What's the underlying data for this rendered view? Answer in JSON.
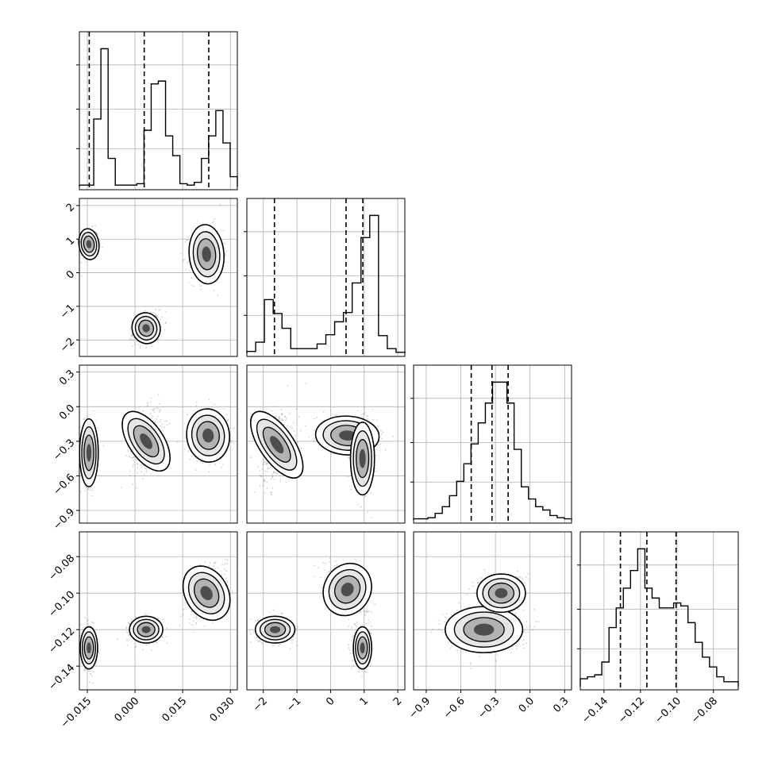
{
  "chart_data": {
    "type": "corner",
    "grid": true,
    "parameters": [
      {
        "ticks": [
          "−0.015",
          "0.000",
          "0.015",
          "0.030"
        ],
        "tick_values": [
          -0.015,
          0.0,
          0.015,
          0.03
        ],
        "range": [
          -0.0175,
          0.0322
        ]
      },
      {
        "ticks": [
          "−2",
          "−1",
          "0",
          "1",
          "2"
        ],
        "tick_values": [
          -2,
          -1,
          0,
          1,
          2
        ],
        "range": [
          -2.49,
          2.21
        ]
      },
      {
        "ticks": [
          "−0.9",
          "−0.6",
          "−0.3",
          "0.0",
          "0.3"
        ],
        "tick_values": [
          -0.9,
          -0.6,
          -0.3,
          0.0,
          0.3
        ],
        "range": [
          -1.01,
          0.36
        ]
      },
      {
        "ticks": [
          "−0.14",
          "−0.12",
          "−0.10",
          "−0.08"
        ],
        "tick_values": [
          -0.14,
          -0.12,
          -0.1,
          -0.08
        ],
        "range": [
          -0.153,
          -0.0664
        ]
      }
    ],
    "histograms": [
      {
        "counts": [
          1,
          1,
          48,
          98,
          20,
          1,
          1,
          1,
          2,
          40,
          73,
          75,
          36,
          22,
          2,
          1,
          3,
          20,
          36,
          54,
          31,
          7
        ],
        "quantile_lines": [
          -0.0144,
          0.0029,
          0.0232
        ]
      },
      {
        "counts": [
          2,
          12,
          58,
          43,
          27,
          5,
          5,
          5,
          10,
          20,
          34,
          44,
          76,
          125,
          149,
          19,
          5,
          1
        ],
        "quantile_lines": [
          -1.67,
          0.46,
          0.96
        ]
      },
      {
        "counts": [
          1,
          1,
          2,
          6,
          12,
          22,
          35,
          51,
          69,
          88,
          106,
          125,
          125,
          106,
          64,
          30,
          19,
          12,
          9,
          4,
          2,
          1
        ],
        "quantile_lines": [
          -0.51,
          -0.33,
          -0.19
        ]
      },
      {
        "counts": [
          8,
          10,
          12,
          25,
          60,
          80,
          100,
          118,
          140,
          100,
          90,
          80,
          80,
          85,
          82,
          65,
          45,
          30,
          20,
          10,
          5,
          5
        ],
        "quantile_lines": [
          -0.131,
          -0.1165,
          -0.1005
        ]
      }
    ],
    "scatter_panels": [
      {
        "x": 0,
        "y": 1,
        "clusters": [
          {
            "mx": -0.0145,
            "my": 0.85,
            "sx": 0.0015,
            "sy": 0.22,
            "r": 0.1,
            "n": 330,
            "c": "k0"
          },
          {
            "mx": 0.0035,
            "my": -1.65,
            "sx": 0.0021,
            "sy": 0.22,
            "r": 0.3,
            "n": 330,
            "c": "k1"
          },
          {
            "mx": 0.0225,
            "my": 0.55,
            "sx": 0.0026,
            "sy": 0.42,
            "r": 0.05,
            "n": 340,
            "c": "k2"
          }
        ]
      },
      {
        "x": 0,
        "y": 2,
        "clusters": [
          {
            "mx": -0.0145,
            "my": -0.4,
            "sx": 0.0014,
            "sy": 0.14,
            "r": 0.0,
            "n": 330,
            "c": "k0"
          },
          {
            "mx": 0.0035,
            "my": -0.3,
            "sx": 0.0026,
            "sy": 0.14,
            "r": 0.4,
            "n": 330,
            "c": "k1"
          },
          {
            "mx": 0.023,
            "my": -0.25,
            "sx": 0.0032,
            "sy": 0.11,
            "r": 0.1,
            "n": 340,
            "c": "k2"
          }
        ]
      },
      {
        "x": 1,
        "y": 2,
        "clusters": [
          {
            "mx": -1.6,
            "my": -0.33,
            "sx": 0.24,
            "sy": 0.16,
            "r": 0.35,
            "n": 330,
            "c": "k1"
          },
          {
            "mx": 0.5,
            "my": -0.25,
            "sx": 0.45,
            "sy": 0.08,
            "r": -0.1,
            "n": 300,
            "c": "k2"
          },
          {
            "mx": 0.95,
            "my": -0.45,
            "sx": 0.17,
            "sy": 0.15,
            "r": 0.0,
            "n": 370,
            "c": "k0"
          }
        ]
      },
      {
        "x": 0,
        "y": 3,
        "clusters": [
          {
            "mx": -0.0145,
            "my": -0.13,
            "sx": 0.0013,
            "sy": 0.0055,
            "r": 0.0,
            "n": 330,
            "c": "k0"
          },
          {
            "mx": 0.0035,
            "my": -0.12,
            "sx": 0.0025,
            "sy": 0.0035,
            "r": 0.0,
            "n": 330,
            "c": "k1"
          },
          {
            "mx": 0.0225,
            "my": -0.1,
            "sx": 0.0032,
            "sy": 0.0075,
            "r": 0.5,
            "n": 340,
            "c": "k2"
          }
        ]
      },
      {
        "x": 1,
        "y": 3,
        "clusters": [
          {
            "mx": -1.65,
            "my": -0.12,
            "sx": 0.28,
            "sy": 0.0035,
            "r": 0.0,
            "n": 330,
            "c": "k1"
          },
          {
            "mx": 0.5,
            "my": -0.098,
            "sx": 0.33,
            "sy": 0.007,
            "r": -0.55,
            "n": 330,
            "c": "k2"
          },
          {
            "mx": 0.95,
            "my": -0.13,
            "sx": 0.13,
            "sy": 0.0055,
            "r": 0.0,
            "n": 340,
            "c": "k0"
          }
        ]
      },
      {
        "x": 2,
        "y": 3,
        "clusters": [
          {
            "mx": -0.4,
            "my": -0.12,
            "sx": 0.16,
            "sy": 0.006,
            "r": 0.0,
            "n": 500,
            "c": "k1"
          },
          {
            "mx": -0.25,
            "my": -0.1,
            "sx": 0.1,
            "sy": 0.005,
            "r": 0.0,
            "n": 500,
            "c": "k2"
          }
        ]
      }
    ],
    "colors": {
      "hist_line": "#000000",
      "scatter": "#000000",
      "grid": "#b0b0b0",
      "quantile": "#000000"
    }
  }
}
